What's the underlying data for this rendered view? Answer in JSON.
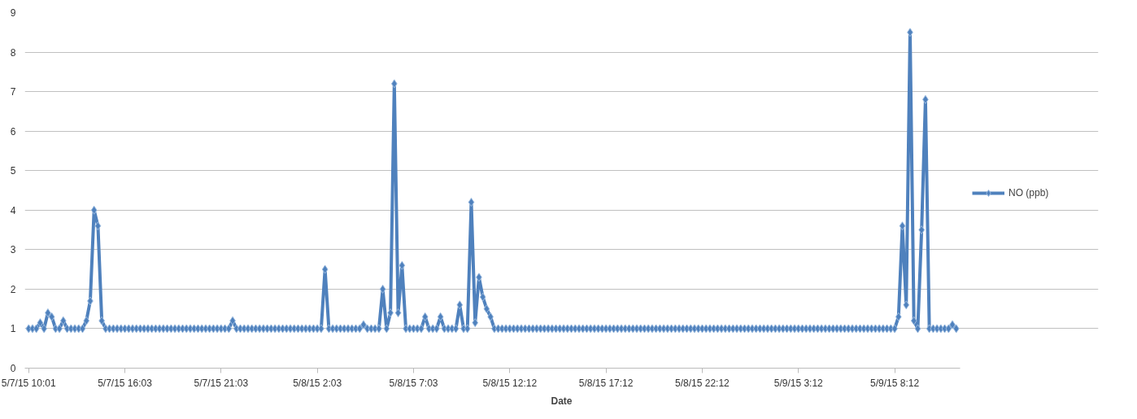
{
  "chart_data": {
    "type": "line",
    "xlabel": "Date",
    "categories": [
      "5/7/15 10:01",
      null,
      null,
      null,
      null,
      null,
      null,
      null,
      null,
      null,
      null,
      null,
      null,
      null,
      null,
      null,
      null,
      null,
      null,
      null,
      null,
      null,
      null,
      null,
      null,
      "5/7/15 16:03",
      null,
      null,
      null,
      null,
      null,
      null,
      null,
      null,
      null,
      null,
      null,
      null,
      null,
      null,
      null,
      null,
      null,
      null,
      null,
      null,
      null,
      null,
      null,
      null,
      "5/7/15 21:03",
      null,
      null,
      null,
      null,
      null,
      null,
      null,
      null,
      null,
      null,
      null,
      null,
      null,
      null,
      null,
      null,
      null,
      null,
      null,
      null,
      null,
      null,
      null,
      null,
      "5/8/15 2:03",
      null,
      null,
      null,
      null,
      null,
      null,
      null,
      null,
      null,
      null,
      null,
      null,
      null,
      null,
      null,
      null,
      null,
      null,
      null,
      null,
      null,
      null,
      null,
      null,
      "5/8/15 7:03",
      null,
      null,
      null,
      null,
      null,
      null,
      null,
      null,
      null,
      null,
      null,
      null,
      null,
      null,
      null,
      null,
      null,
      null,
      null,
      null,
      null,
      null,
      null,
      null,
      "5/8/15 12:12",
      null,
      null,
      null,
      null,
      null,
      null,
      null,
      null,
      null,
      null,
      null,
      null,
      null,
      null,
      null,
      null,
      null,
      null,
      null,
      null,
      null,
      null,
      null,
      null,
      "5/8/15 17:12",
      null,
      null,
      null,
      null,
      null,
      null,
      null,
      null,
      null,
      null,
      null,
      null,
      null,
      null,
      null,
      null,
      null,
      null,
      null,
      null,
      null,
      null,
      null,
      null,
      "5/8/15 22:12",
      null,
      null,
      null,
      null,
      null,
      null,
      null,
      null,
      null,
      null,
      null,
      null,
      null,
      null,
      null,
      null,
      null,
      null,
      null,
      null,
      null,
      null,
      null,
      null,
      "5/9/15 3:12",
      null,
      null,
      null,
      null,
      null,
      null,
      null,
      null,
      null,
      null,
      null,
      null,
      null,
      null,
      null,
      null,
      null,
      null,
      null,
      null,
      null,
      null,
      null,
      null,
      "5/9/15 8:12",
      null,
      null,
      null,
      null,
      null,
      null,
      null,
      null,
      null,
      null,
      null,
      null,
      null,
      null,
      null,
      null
    ],
    "series": [
      {
        "name": "NO (ppb)",
        "color": "#4f81bd",
        "values": [
          1,
          1,
          1,
          1.15,
          1,
          1.4,
          1.3,
          1,
          1,
          1.2,
          1,
          1,
          1,
          1,
          1,
          1.2,
          1.7,
          4.0,
          3.6,
          1.2,
          1,
          1,
          1,
          1,
          1,
          1,
          1,
          1,
          1,
          1,
          1,
          1,
          1,
          1,
          1,
          1,
          1,
          1,
          1,
          1,
          1,
          1,
          1,
          1,
          1,
          1,
          1,
          1,
          1,
          1,
          1,
          1,
          1,
          1.2,
          1,
          1,
          1,
          1,
          1,
          1,
          1,
          1,
          1,
          1,
          1,
          1,
          1,
          1,
          1,
          1,
          1,
          1,
          1,
          1,
          1,
          1,
          1,
          2.5,
          1,
          1,
          1,
          1,
          1,
          1,
          1,
          1,
          1,
          1.1,
          1,
          1,
          1,
          1,
          2.0,
          1,
          1.4,
          7.2,
          1.4,
          2.6,
          1,
          1,
          1,
          1,
          1,
          1.3,
          1,
          1,
          1,
          1.3,
          1,
          1,
          1,
          1,
          1.6,
          1,
          1,
          4.2,
          1.15,
          2.3,
          1.8,
          1.5,
          1.3,
          1,
          1,
          1,
          1,
          1,
          1,
          1,
          1,
          1,
          1,
          1,
          1,
          1,
          1,
          1,
          1,
          1,
          1,
          1,
          1,
          1,
          1,
          1,
          1,
          1,
          1,
          1,
          1,
          1,
          1,
          1,
          1,
          1,
          1,
          1,
          1,
          1,
          1,
          1,
          1,
          1,
          1,
          1,
          1,
          1,
          1,
          1,
          1,
          1,
          1,
          1,
          1,
          1,
          1,
          1,
          1,
          1,
          1,
          1,
          1,
          1,
          1,
          1,
          1,
          1,
          1,
          1,
          1,
          1,
          1,
          1,
          1,
          1,
          1,
          1,
          1,
          1,
          1,
          1,
          1,
          1,
          1,
          1,
          1,
          1,
          1,
          1,
          1,
          1,
          1,
          1,
          1,
          1,
          1,
          1,
          1,
          1,
          1,
          1,
          1,
          1,
          1,
          1,
          1,
          1,
          1.3,
          3.6,
          1.6,
          8.5,
          1.2,
          1,
          3.5,
          6.8,
          1,
          1,
          1,
          1,
          1,
          1,
          1.1,
          1
        ]
      }
    ],
    "ylim": [
      0,
      9
    ],
    "yticks": [
      0,
      1,
      2,
      3,
      4,
      5,
      6,
      7,
      8,
      9
    ],
    "grid": "y",
    "legend": "right",
    "marker": "diamond",
    "line_style": "solid"
  }
}
